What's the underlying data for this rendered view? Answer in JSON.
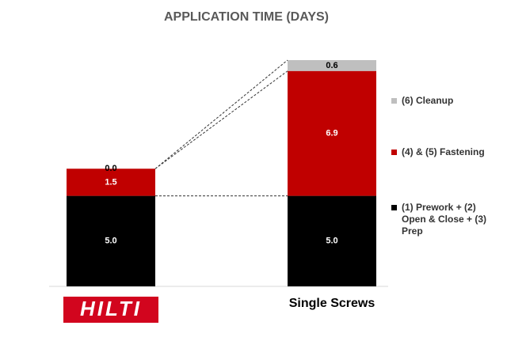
{
  "chart_data": {
    "type": "stacked-bar",
    "title": "APPLICATION TIME (DAYS)",
    "categories": [
      "HILTI",
      "Single Screws"
    ],
    "series": [
      {
        "name": "(1) Prework + (2) Open & Close + (3) Prep",
        "color": "#000000",
        "label_color": "#ffffff",
        "values": [
          5.0,
          5.0
        ],
        "value_labels": [
          "5.0",
          "5.0"
        ]
      },
      {
        "name": "(4) & (5) Fastening",
        "color": "#c00000",
        "label_color": "#ffffff",
        "values": [
          1.5,
          6.9
        ],
        "value_labels": [
          "1.5",
          "6.9"
        ]
      },
      {
        "name": "(6) Cleanup",
        "color": "#bfbfbf",
        "label_color": "#000000",
        "values": [
          0.0,
          0.6
        ],
        "value_labels": [
          "0.0",
          "0.6"
        ]
      }
    ]
  }
}
